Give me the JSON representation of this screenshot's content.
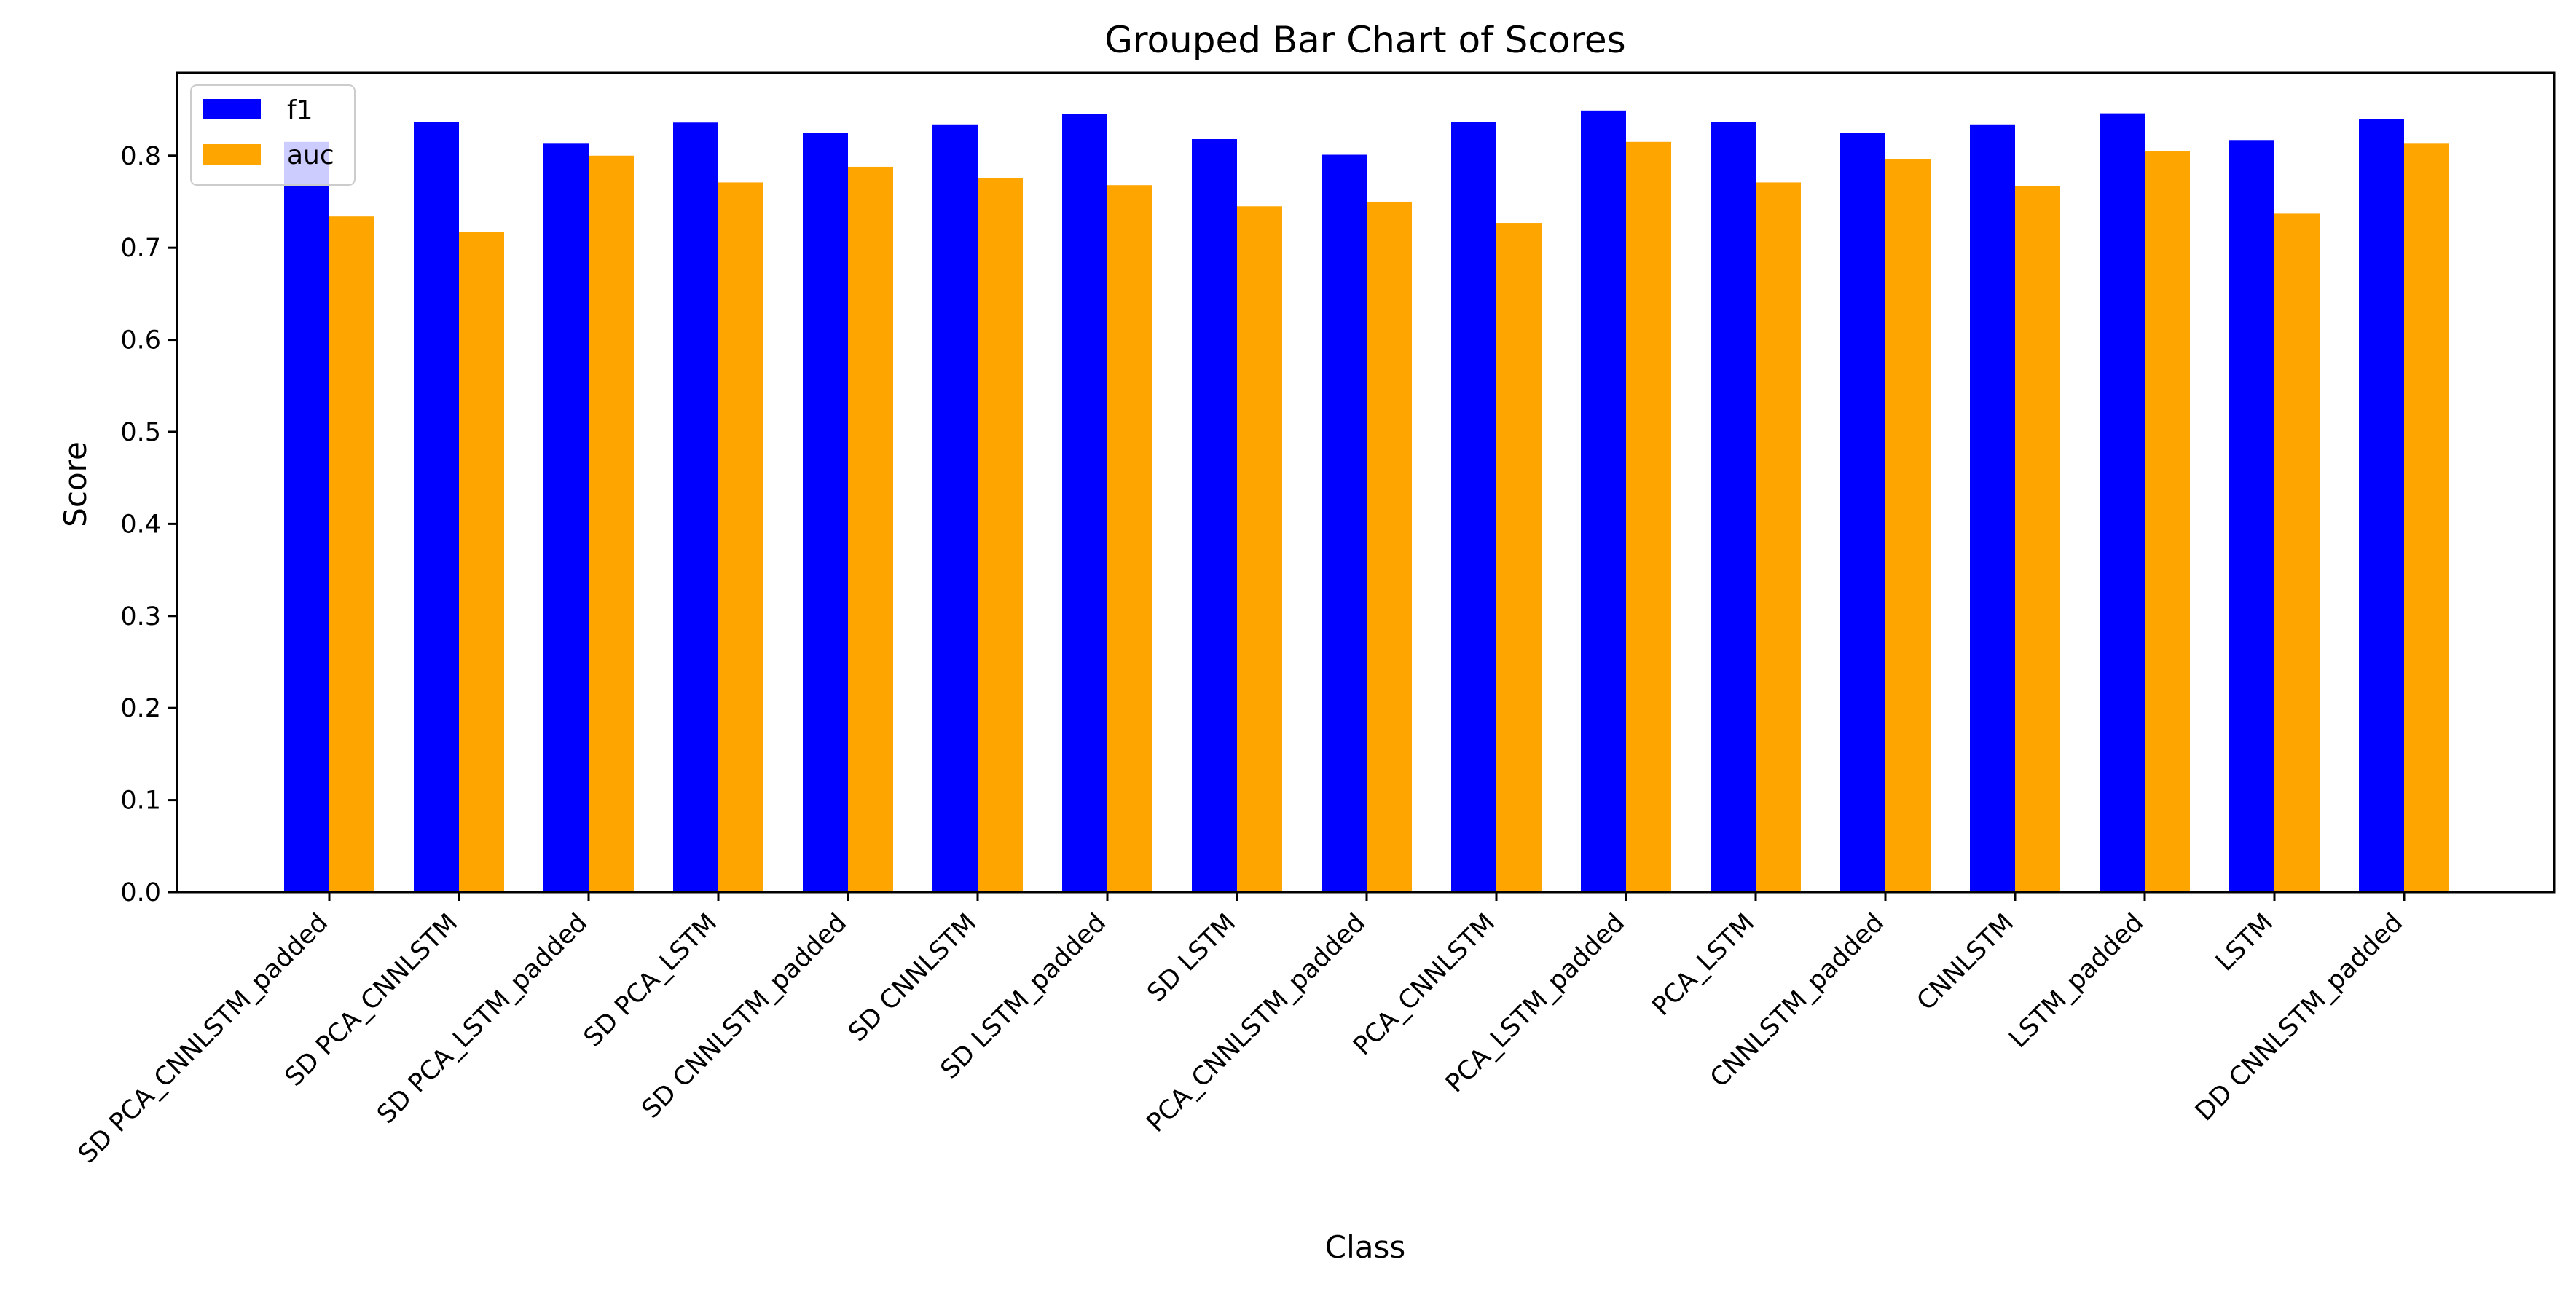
{
  "chart_data": {
    "type": "bar",
    "title": "Grouped Bar Chart of Scores",
    "xlabel": "Class",
    "ylabel": "Score",
    "ylim": [
      0,
      0.89
    ],
    "yticks": [
      0.0,
      0.1,
      0.2,
      0.3,
      0.4,
      0.5,
      0.6,
      0.7,
      0.8
    ],
    "ytick_labels": [
      "0.0",
      "0.1",
      "0.2",
      "0.3",
      "0.4",
      "0.5",
      "0.6",
      "0.7",
      "0.8"
    ],
    "grid": false,
    "legend_position": "top-left",
    "categories": [
      "SD PCA_CNNLSTM_padded",
      "SD PCA_CNNLSTM",
      "SD PCA_LSTM_padded",
      "SD PCA_LSTM",
      "SD CNNLSTM_padded",
      "SD CNNLSTM",
      "SD LSTM_padded",
      "SD LSTM",
      "PCA_CNNLSTM_padded",
      "PCA_CNNLSTM",
      "PCA_LSTM_padded",
      "PCA_LSTM",
      "CNNLSTM_padded",
      "CNNLSTM",
      "LSTM_padded",
      "LSTM",
      "DD CNNLSTM_padded"
    ],
    "series": [
      {
        "name": "f1",
        "color": "#0000ff",
        "values": [
          0.815,
          0.837,
          0.813,
          0.836,
          0.825,
          0.834,
          0.845,
          0.818,
          0.801,
          0.837,
          0.849,
          0.837,
          0.825,
          0.834,
          0.846,
          0.817,
          0.84
        ]
      },
      {
        "name": "auc",
        "color": "#ffa500",
        "values": [
          0.734,
          0.717,
          0.8,
          0.771,
          0.788,
          0.776,
          0.768,
          0.745,
          0.75,
          0.727,
          0.815,
          0.771,
          0.796,
          0.767,
          0.805,
          0.737,
          0.813
        ]
      }
    ]
  }
}
